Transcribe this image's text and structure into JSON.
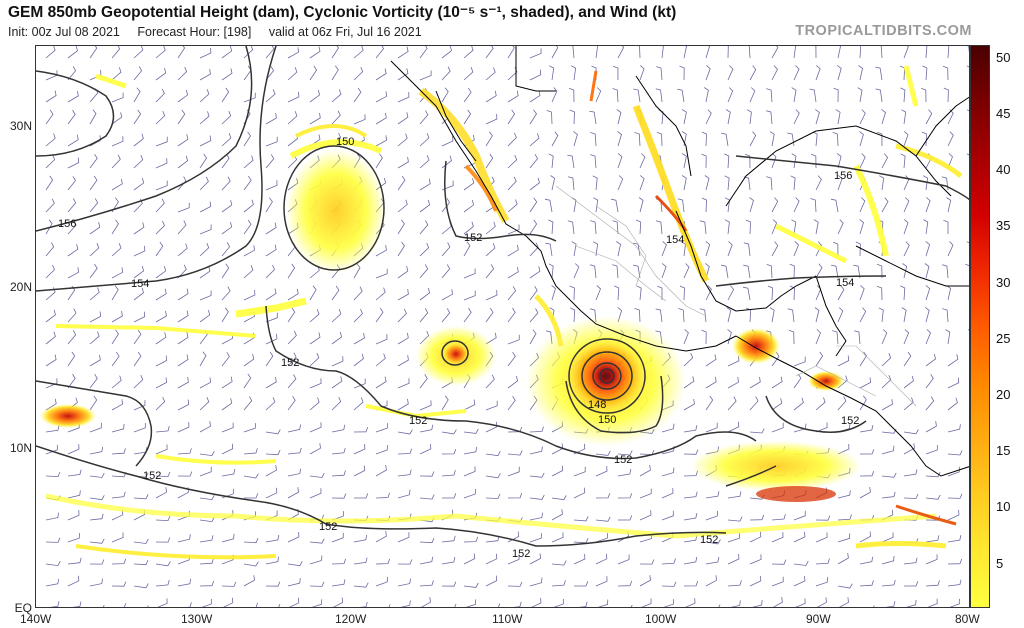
{
  "header": {
    "title": "GEM 850mb Geopotential Height (dam), Cyclonic Vorticity (10⁻⁵ s⁻¹, shaded), and Wind (kt)",
    "init": "Init: 00z Jul 08 2021",
    "forecast_hour": "Forecast Hour: [198]",
    "valid": "valid at 06z Fri, Jul 16 2021",
    "brand": "TROPICALTIDBITS.COM"
  },
  "axes": {
    "lat_labels": [
      "30N",
      "20N",
      "10N",
      "EQ"
    ],
    "lon_labels": [
      "140W",
      "130W",
      "120W",
      "110W",
      "100W",
      "90W",
      "80W"
    ]
  },
  "contour_labels": [
    "150",
    "156",
    "152",
    "154",
    "152",
    "152",
    "154",
    "152",
    "152",
    "152",
    "152",
    "152",
    "156",
    "154",
    "148",
    "150",
    "152"
  ],
  "colorbar": {
    "ticks": [
      "50",
      "45",
      "40",
      "35",
      "30",
      "25",
      "20",
      "15",
      "10",
      "5"
    ]
  },
  "colors": {
    "contour": "#333333",
    "coast": "#000000",
    "wind_barb": "#6a6aa0",
    "vort_low": "#ffff40",
    "vort_high": "#7a0000"
  }
}
